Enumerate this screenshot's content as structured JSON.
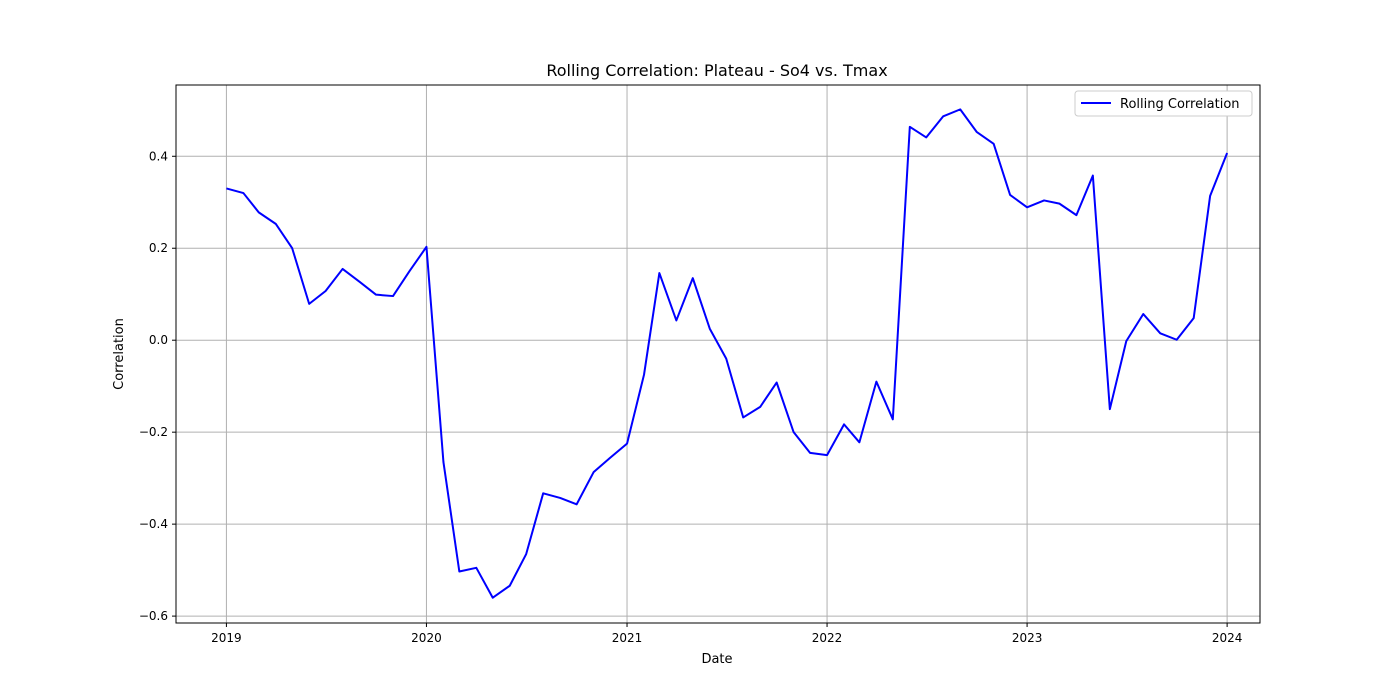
{
  "chart_data": {
    "type": "line",
    "title": "Rolling Correlation: Plateau - So4 vs. Tmax",
    "xlabel": "Date",
    "ylabel": "Correlation",
    "xlim": [
      "2018-10-01",
      "2024-03-01"
    ],
    "ylim": [
      -0.615,
      0.555
    ],
    "x_ticks": [
      "2019",
      "2020",
      "2021",
      "2022",
      "2023",
      "2024"
    ],
    "y_ticks": [
      -0.6,
      -0.4,
      -0.2,
      0.0,
      0.2,
      0.4
    ],
    "y_tick_labels": [
      "−0.6",
      "−0.4",
      "−0.2",
      "0.0",
      "0.2",
      "0.4"
    ],
    "grid": true,
    "legend_position": "top-right",
    "series": [
      {
        "name": "Rolling Correlation",
        "color": "#0000ff",
        "x": [
          "2019-01",
          "2019-02",
          "2019-03",
          "2019-04",
          "2019-05",
          "2019-06",
          "2019-07",
          "2019-08",
          "2019-09",
          "2019-10",
          "2019-11",
          "2019-12",
          "2020-01",
          "2020-02",
          "2020-03",
          "2020-04",
          "2020-05",
          "2020-06",
          "2020-07",
          "2020-08",
          "2020-09",
          "2020-10",
          "2020-11",
          "2020-12",
          "2021-01",
          "2021-02",
          "2021-03",
          "2021-04",
          "2021-05",
          "2021-06",
          "2021-07",
          "2021-08",
          "2021-09",
          "2021-10",
          "2021-11",
          "2021-12",
          "2022-01",
          "2022-02",
          "2022-03",
          "2022-04",
          "2022-05",
          "2022-06",
          "2022-07",
          "2022-08",
          "2022-09",
          "2022-10",
          "2022-11",
          "2022-12",
          "2023-01",
          "2023-02",
          "2023-03",
          "2023-04",
          "2023-05",
          "2023-06",
          "2023-07",
          "2023-08",
          "2023-09",
          "2023-10",
          "2023-11",
          "2023-12",
          "2024-01"
        ],
        "values": [
          0.33,
          0.32,
          0.278,
          0.253,
          0.2,
          0.079,
          0.107,
          0.155,
          0.127,
          0.099,
          0.096,
          0.15,
          0.203,
          -0.265,
          -0.503,
          -0.495,
          -0.56,
          -0.534,
          -0.465,
          -0.333,
          -0.343,
          -0.357,
          -0.287,
          -0.256,
          -0.225,
          -0.075,
          0.146,
          0.043,
          0.135,
          0.025,
          -0.04,
          -0.168,
          -0.145,
          -0.092,
          -0.2,
          -0.245,
          -0.25,
          -0.183,
          -0.222,
          -0.09,
          -0.172,
          0.464,
          0.441,
          0.487,
          0.502,
          0.453,
          0.427,
          0.316,
          0.289,
          0.304,
          0.297,
          0.272,
          0.358,
          -0.15,
          -0.002,
          0.057,
          0.015,
          0.001,
          0.048,
          0.314,
          0.407
        ]
      }
    ]
  }
}
